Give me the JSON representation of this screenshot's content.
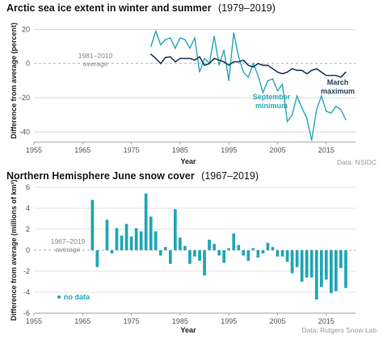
{
  "colors": {
    "march": "#1f3a5c",
    "september": "#29a8b8",
    "snow": "#20a6b5",
    "grid": "#c8c8c8"
  },
  "chart_data": [
    {
      "type": "line",
      "title_bold": "Arctic sea ice extent in winter and summer",
      "title_light": "(1979–2019)",
      "xlabel": "Year",
      "ylabel": "Difference from average (percent)",
      "xlim": [
        1955,
        2021
      ],
      "ylim": [
        -46,
        24
      ],
      "xticks": [
        1955,
        1965,
        1975,
        1985,
        1995,
        2005,
        2015
      ],
      "yticks": [
        20,
        0,
        -20,
        -40
      ],
      "baseline_label_1": "1981–2010",
      "baseline_label_2": "average",
      "source": "Data: NSIDC",
      "series": [
        {
          "name": "March maximum",
          "label_1": "March",
          "label_2": "maximum",
          "color": "#1f3a5c",
          "x": [
            1979,
            1980,
            1981,
            1982,
            1983,
            1984,
            1985,
            1986,
            1987,
            1988,
            1989,
            1990,
            1991,
            1992,
            1993,
            1994,
            1995,
            1996,
            1997,
            1998,
            1999,
            2000,
            2001,
            2002,
            2003,
            2004,
            2005,
            2006,
            2007,
            2008,
            2009,
            2010,
            2011,
            2012,
            2013,
            2014,
            2015,
            2016,
            2017,
            2018,
            2019
          ],
          "values": [
            5.5,
            3,
            0,
            3.5,
            4,
            1,
            3,
            3,
            3,
            2,
            4,
            -1,
            0,
            3,
            2,
            1,
            -1,
            1,
            1,
            2,
            -1,
            -2,
            0,
            -1,
            -1,
            -3,
            -5,
            -6,
            -5,
            -3,
            -4,
            -4,
            -6,
            -4,
            -3,
            -5,
            -7,
            -7,
            -7,
            -8,
            -5
          ]
        },
        {
          "name": "September minimum",
          "label_1": "September",
          "label_2": "minimum",
          "color": "#29a8b8",
          "x": [
            1979,
            1980,
            1981,
            1982,
            1983,
            1984,
            1985,
            1986,
            1987,
            1988,
            1989,
            1990,
            1991,
            1992,
            1993,
            1994,
            1995,
            1996,
            1997,
            1998,
            1999,
            2000,
            2001,
            2002,
            2003,
            2004,
            2005,
            2006,
            2007,
            2008,
            2009,
            2010,
            2011,
            2012,
            2013,
            2014,
            2015,
            2016,
            2017,
            2018,
            2019
          ],
          "values": [
            10,
            19,
            11,
            14,
            15,
            9,
            15,
            14,
            9,
            15,
            -5,
            3,
            0,
            16,
            -1,
            8,
            -10,
            18,
            4,
            -5,
            -8,
            0,
            -7,
            -17,
            -10,
            -9,
            -16,
            -12,
            -34,
            -30,
            -19,
            -26,
            -32,
            -45,
            -27,
            -19,
            -28,
            -29,
            -25,
            -27,
            -33
          ]
        }
      ]
    },
    {
      "type": "bar",
      "title_bold": "Northern Hemisphere June snow cover",
      "title_light": "(1967–2019)",
      "xlabel": "Year",
      "ylabel": "Difference from average (millions of km²)",
      "xlim": [
        1955,
        2021
      ],
      "ylim": [
        -6,
        6
      ],
      "xticks": [
        1955,
        1965,
        1975,
        1985,
        1995,
        2005,
        2015
      ],
      "yticks": [
        6,
        4,
        2,
        0,
        -2,
        -4,
        -6
      ],
      "baseline_label_1": "1967–2019",
      "baseline_label_2": "average",
      "no_data_label": "no data",
      "source": "Data: Rutgers Snow Lab",
      "color": "#20a6b5",
      "x": [
        1967,
        1968,
        1969,
        1970,
        1971,
        1972,
        1973,
        1974,
        1975,
        1976,
        1977,
        1978,
        1979,
        1980,
        1981,
        1982,
        1983,
        1984,
        1985,
        1986,
        1987,
        1988,
        1989,
        1990,
        1991,
        1992,
        1993,
        1994,
        1995,
        1996,
        1997,
        1998,
        1999,
        2000,
        2001,
        2002,
        2003,
        2004,
        2005,
        2006,
        2007,
        2008,
        2009,
        2010,
        2011,
        2012,
        2013,
        2014,
        2015,
        2016,
        2017,
        2018,
        2019
      ],
      "values": [
        4.8,
        -1.6,
        null,
        2.9,
        -0.3,
        2.1,
        1.4,
        2.5,
        1.3,
        2.1,
        1.8,
        5.4,
        3.2,
        1.8,
        -0.5,
        0.3,
        -1.3,
        3.9,
        1.2,
        0.4,
        -1.3,
        -0.6,
        -1.0,
        -2.4,
        1.0,
        0.6,
        -0.5,
        -1.2,
        0.2,
        1.6,
        0.5,
        -0.5,
        -1.0,
        0.2,
        -0.7,
        -0.3,
        0.7,
        0.3,
        -0.6,
        -0.6,
        -1.1,
        -2.2,
        -1.6,
        -3.0,
        -2.6,
        -2.6,
        -4.7,
        -3.5,
        -2.8,
        -4.1,
        -3.9,
        -1.7,
        -3.6
      ]
    }
  ]
}
